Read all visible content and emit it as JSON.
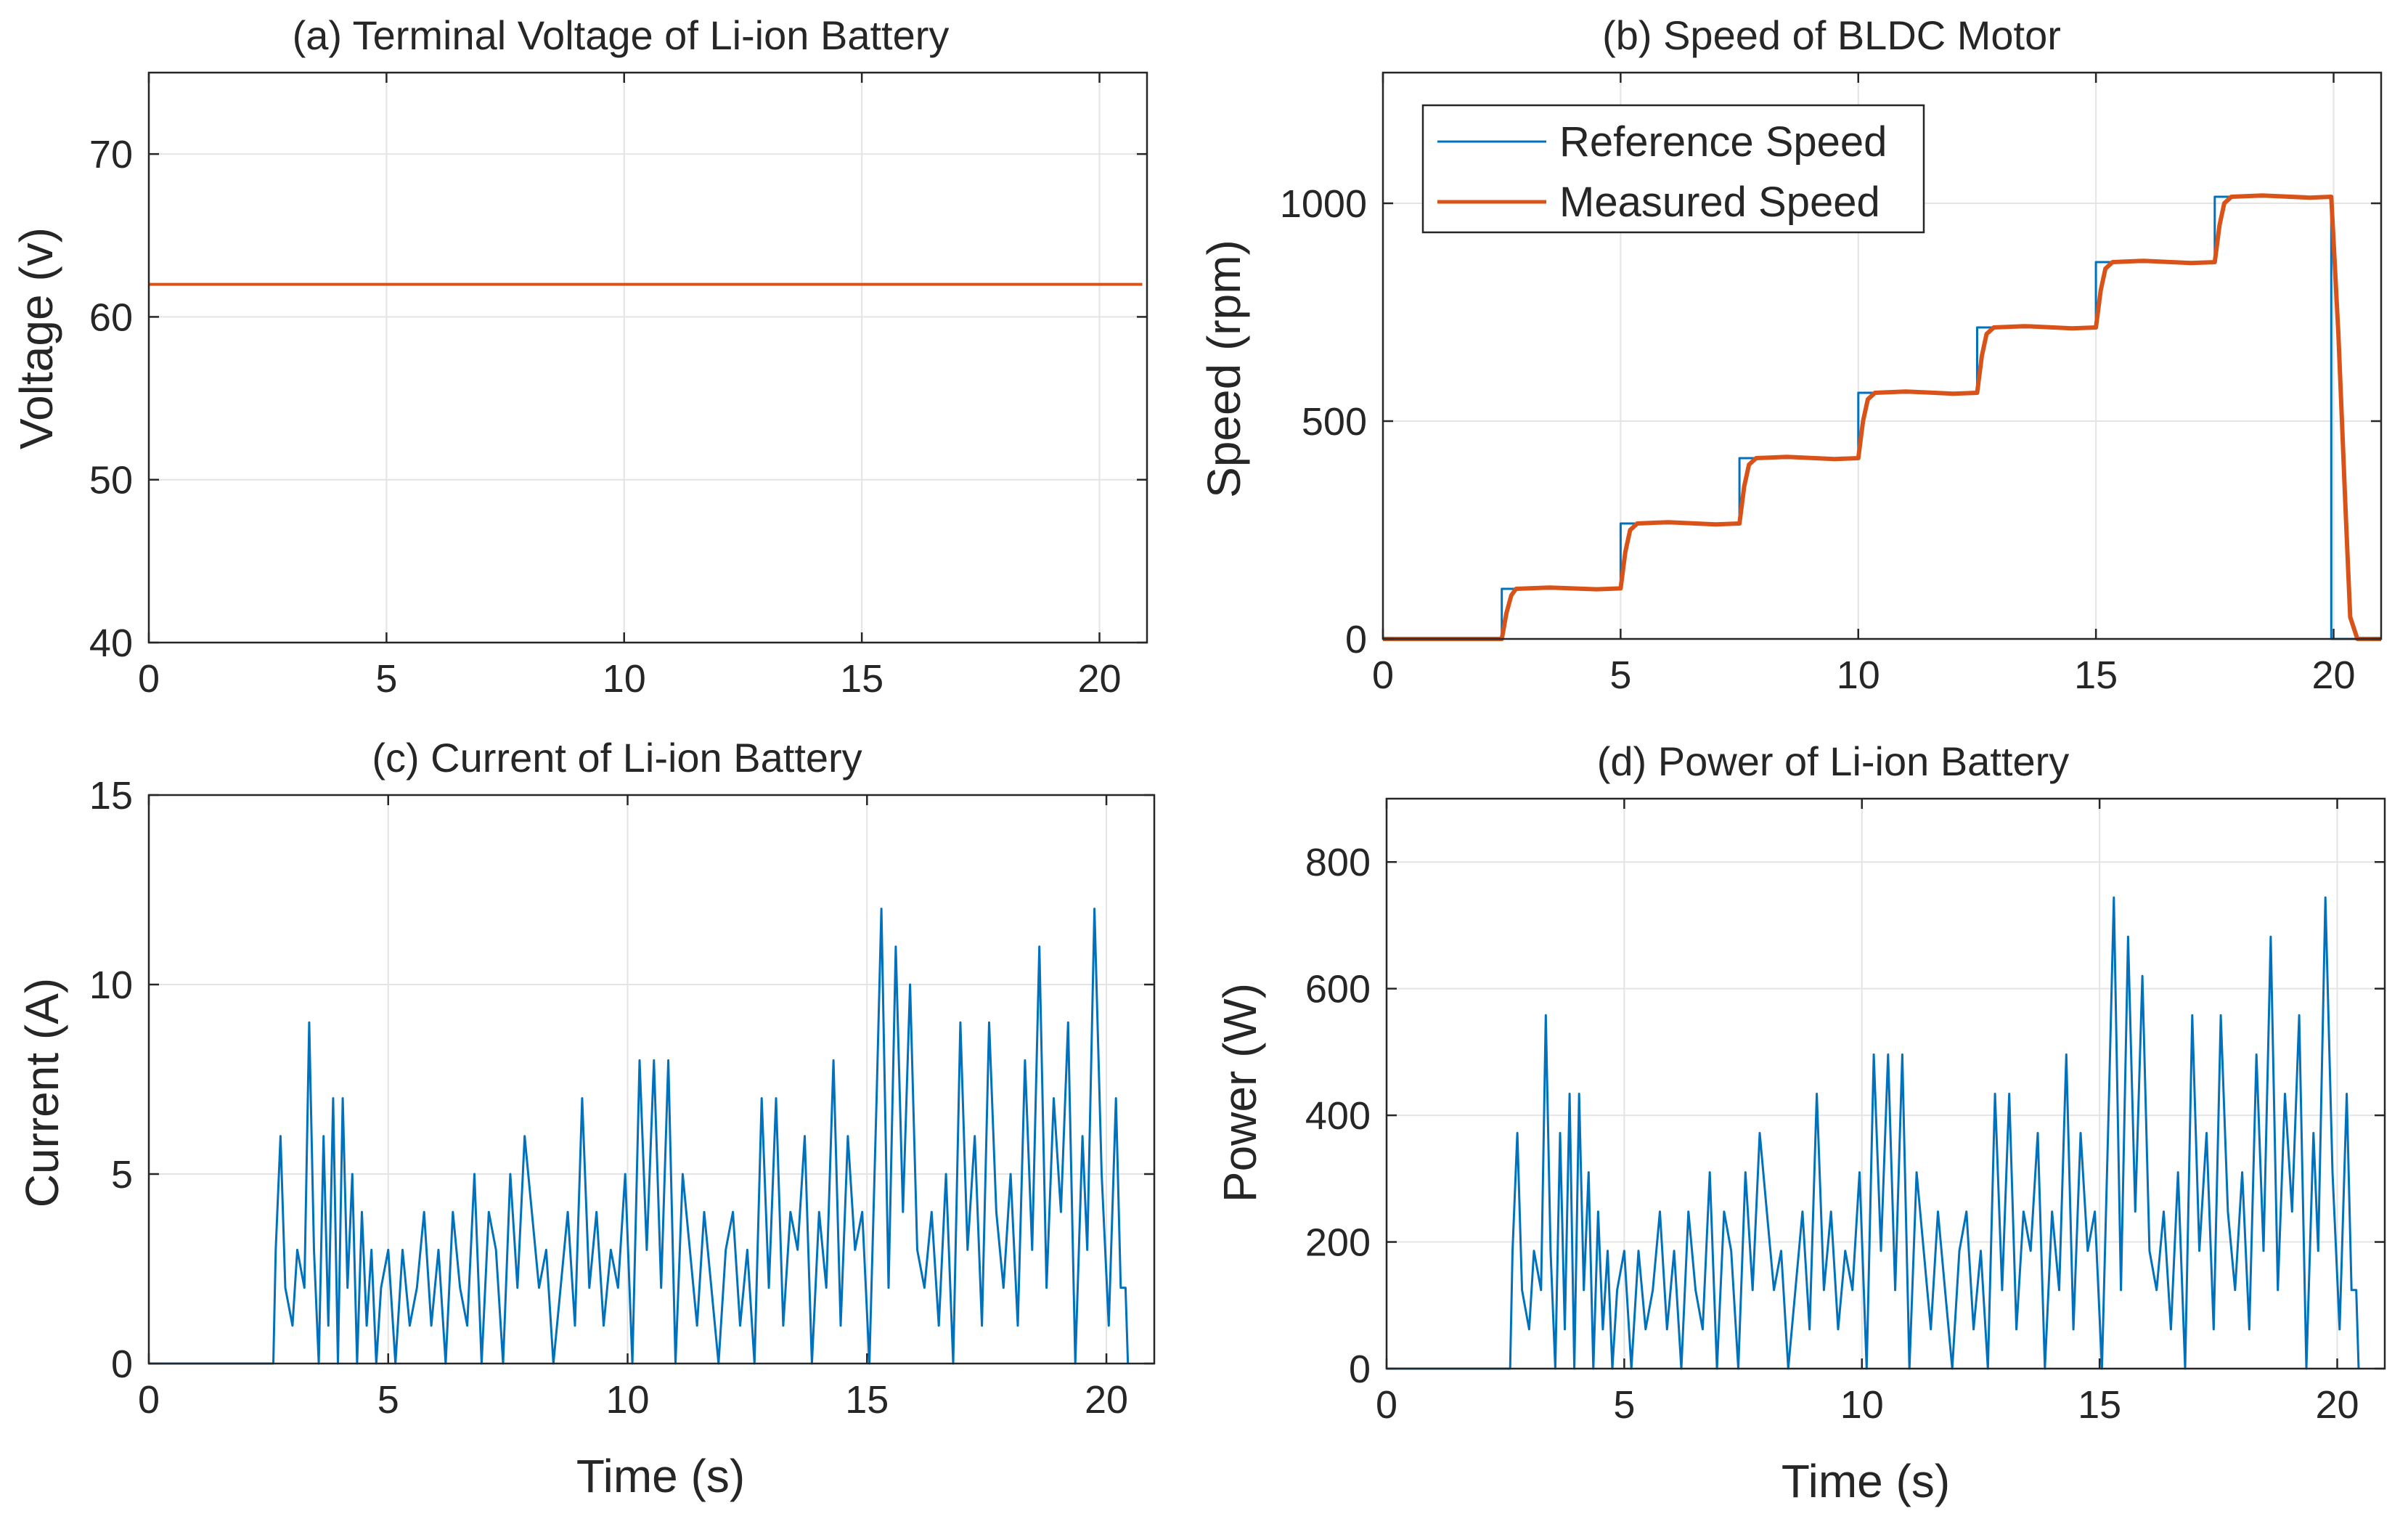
{
  "figure": {
    "colors": {
      "blue": "#0072BD",
      "orange": "#D95319",
      "grid": "#e4e4e4",
      "axis": "#262626"
    }
  },
  "chart_data": [
    {
      "id": "a",
      "type": "line",
      "title": "(a) Terminal Voltage of Li-ion Battery",
      "xlabel": "",
      "ylabel": "Voltage (v)",
      "xlim": [
        0,
        21
      ],
      "ylim": [
        40,
        75
      ],
      "xticks": [
        0,
        5,
        10,
        15,
        20
      ],
      "xtick_labels": [
        "0",
        "5",
        "10",
        "15",
        "20"
      ],
      "yticks": [
        40,
        50,
        60,
        70
      ],
      "ytick_labels": [
        "40",
        "50",
        "60",
        "70"
      ],
      "grid": true,
      "series": [
        {
          "name": "Terminal Voltage",
          "color": "#D95319",
          "x": [
            0,
            20.9
          ],
          "y": [
            62,
            62
          ]
        }
      ]
    },
    {
      "id": "b",
      "type": "line",
      "title": "(b) Speed of BLDC Motor",
      "xlabel": "",
      "ylabel": "Speed (rpm)",
      "xlim": [
        0,
        21
      ],
      "ylim": [
        0,
        1300
      ],
      "xticks": [
        0,
        5,
        10,
        15,
        20
      ],
      "xtick_labels": [
        "0",
        "5",
        "10",
        "15",
        "20"
      ],
      "yticks": [
        0,
        500,
        1000
      ],
      "ytick_labels": [
        "0",
        "500",
        "1000"
      ],
      "grid": true,
      "legend": {
        "position": "top-left",
        "entries": [
          "Reference Speed",
          "Measured Speed"
        ]
      },
      "series": [
        {
          "name": "Reference Speed",
          "color": "#0072BD",
          "x": [
            0,
            2.5,
            2.5,
            5,
            5,
            7.5,
            7.5,
            10,
            10,
            12.5,
            12.5,
            15,
            15,
            17.5,
            17.5,
            19.95,
            19.95,
            21
          ],
          "y": [
            0,
            0,
            115,
            115,
            265,
            265,
            415,
            415,
            565,
            565,
            715,
            715,
            865,
            865,
            1015,
            1015,
            0,
            0
          ]
        },
        {
          "name": "Measured Speed",
          "color": "#D95319",
          "x": [
            0,
            2.5,
            2.6,
            2.7,
            2.8,
            3.5,
            4.5,
            5,
            5.1,
            5.2,
            5.35,
            6,
            7,
            7.5,
            7.6,
            7.7,
            7.85,
            8.5,
            9.5,
            10,
            10.1,
            10.2,
            10.35,
            11,
            12,
            12.5,
            12.6,
            12.7,
            12.85,
            13.5,
            14.5,
            15,
            15.1,
            15.2,
            15.35,
            16,
            17,
            17.5,
            17.6,
            17.7,
            17.85,
            18.5,
            19.5,
            19.95,
            20.1,
            20.25,
            20.35,
            20.5,
            21
          ],
          "y": [
            0,
            0,
            60,
            100,
            115,
            118,
            114,
            116,
            200,
            250,
            265,
            268,
            263,
            265,
            350,
            400,
            415,
            418,
            413,
            415,
            500,
            550,
            565,
            568,
            563,
            565,
            650,
            700,
            715,
            718,
            713,
            715,
            800,
            850,
            865,
            868,
            863,
            865,
            950,
            1000,
            1015,
            1018,
            1013,
            1015,
            700,
            300,
            50,
            0,
            0
          ]
        }
      ]
    },
    {
      "id": "c",
      "type": "line",
      "title": "(c) Current of Li-ion Battery",
      "xlabel": "Time (s)",
      "ylabel": "Current (A)",
      "xlim": [
        0,
        21
      ],
      "ylim": [
        0,
        15
      ],
      "xticks": [
        0,
        5,
        10,
        15,
        20
      ],
      "xtick_labels": [
        "0",
        "5",
        "10",
        "15",
        "20"
      ],
      "yticks": [
        0,
        5,
        10,
        15
      ],
      "ytick_labels": [
        "0",
        "5",
        "10",
        "15"
      ],
      "grid": true,
      "series": [
        {
          "name": "Current",
          "color": "#0072BD",
          "x": [
            0,
            2.6,
            2.65,
            2.75,
            2.85,
            3.0,
            3.1,
            3.25,
            3.35,
            3.45,
            3.55,
            3.65,
            3.75,
            3.85,
            3.95,
            4.05,
            4.15,
            4.25,
            4.35,
            4.45,
            4.55,
            4.65,
            4.75,
            4.85,
            5.0,
            5.15,
            5.3,
            5.45,
            5.6,
            5.75,
            5.9,
            6.05,
            6.2,
            6.35,
            6.5,
            6.65,
            6.8,
            6.95,
            7.1,
            7.25,
            7.4,
            7.55,
            7.7,
            7.85,
            8.0,
            8.15,
            8.3,
            8.45,
            8.6,
            8.75,
            8.9,
            9.05,
            9.2,
            9.35,
            9.5,
            9.65,
            9.8,
            9.95,
            10.1,
            10.25,
            10.4,
            10.55,
            10.7,
            10.85,
            11.0,
            11.15,
            11.3,
            11.45,
            11.6,
            11.75,
            11.9,
            12.05,
            12.2,
            12.35,
            12.5,
            12.65,
            12.8,
            12.95,
            13.1,
            13.25,
            13.4,
            13.55,
            13.7,
            13.85,
            14.0,
            14.15,
            14.3,
            14.45,
            14.6,
            14.75,
            14.9,
            15.05,
            15.2,
            15.3,
            15.45,
            15.6,
            15.75,
            15.9,
            16.05,
            16.2,
            16.35,
            16.5,
            16.65,
            16.8,
            16.95,
            17.1,
            17.25,
            17.4,
            17.55,
            17.7,
            17.85,
            18.0,
            18.15,
            18.3,
            18.45,
            18.6,
            18.75,
            18.9,
            19.05,
            19.2,
            19.35,
            19.5,
            19.6,
            19.75,
            19.9,
            20.05,
            20.2,
            20.3,
            20.4,
            20.45
          ],
          "y": [
            0,
            0,
            3,
            6,
            2,
            1,
            3,
            2,
            9,
            3,
            0,
            6,
            1,
            7,
            0,
            7,
            2,
            5,
            0,
            4,
            1,
            3,
            0,
            2,
            3,
            0,
            3,
            1,
            2,
            4,
            1,
            3,
            0,
            4,
            2,
            1,
            5,
            0,
            4,
            3,
            0,
            5,
            2,
            6,
            4,
            2,
            3,
            0,
            2,
            4,
            1,
            7,
            2,
            4,
            1,
            3,
            2,
            5,
            0,
            8,
            3,
            8,
            2,
            8,
            0,
            5,
            3,
            1,
            4,
            2,
            0,
            3,
            4,
            1,
            3,
            0,
            7,
            2,
            7,
            1,
            4,
            3,
            6,
            0,
            4,
            2,
            8,
            1,
            6,
            3,
            4,
            0,
            7,
            12,
            2,
            11,
            4,
            10,
            3,
            2,
            4,
            1,
            5,
            0,
            9,
            3,
            6,
            1,
            9,
            4,
            2,
            5,
            1,
            8,
            3,
            11,
            2,
            7,
            4,
            9,
            0,
            6,
            3,
            12,
            5,
            1,
            7,
            2,
            2,
            0
          ]
        }
      ]
    },
    {
      "id": "d",
      "type": "line",
      "title": "(d) Power of Li-ion Battery",
      "xlabel": "Time (s)",
      "ylabel": "Power (W)",
      "xlim": [
        0,
        21
      ],
      "ylim": [
        0,
        900
      ],
      "xticks": [
        0,
        5,
        10,
        15,
        20
      ],
      "xtick_labels": [
        "0",
        "5",
        "10",
        "15",
        "20"
      ],
      "yticks": [
        0,
        200,
        400,
        600,
        800
      ],
      "ytick_labels": [
        "0",
        "200",
        "400",
        "600",
        "800"
      ],
      "grid": true,
      "series": [
        {
          "name": "Power",
          "color": "#0072BD",
          "x": [
            0,
            2.6,
            2.65,
            2.75,
            2.85,
            3.0,
            3.1,
            3.25,
            3.35,
            3.45,
            3.55,
            3.65,
            3.75,
            3.85,
            3.95,
            4.05,
            4.15,
            4.25,
            4.35,
            4.45,
            4.55,
            4.65,
            4.75,
            4.85,
            5.0,
            5.15,
            5.3,
            5.45,
            5.6,
            5.75,
            5.9,
            6.05,
            6.2,
            6.35,
            6.5,
            6.65,
            6.8,
            6.95,
            7.1,
            7.25,
            7.4,
            7.55,
            7.7,
            7.85,
            8.0,
            8.15,
            8.3,
            8.45,
            8.6,
            8.75,
            8.9,
            9.05,
            9.2,
            9.35,
            9.5,
            9.65,
            9.8,
            9.95,
            10.1,
            10.25,
            10.4,
            10.55,
            10.7,
            10.85,
            11.0,
            11.15,
            11.3,
            11.45,
            11.6,
            11.75,
            11.9,
            12.05,
            12.2,
            12.35,
            12.5,
            12.65,
            12.8,
            12.95,
            13.1,
            13.25,
            13.4,
            13.55,
            13.7,
            13.85,
            14.0,
            14.15,
            14.3,
            14.45,
            14.6,
            14.75,
            14.9,
            15.05,
            15.2,
            15.3,
            15.45,
            15.6,
            15.75,
            15.9,
            16.05,
            16.2,
            16.35,
            16.5,
            16.65,
            16.8,
            16.95,
            17.1,
            17.25,
            17.4,
            17.55,
            17.7,
            17.85,
            18.0,
            18.15,
            18.3,
            18.45,
            18.6,
            18.75,
            18.9,
            19.05,
            19.2,
            19.35,
            19.5,
            19.6,
            19.75,
            19.9,
            20.05,
            20.2,
            20.3,
            20.4,
            20.45
          ],
          "y": [
            0,
            0,
            186,
            372,
            124,
            62,
            186,
            124,
            558,
            186,
            0,
            372,
            62,
            434,
            0,
            434,
            124,
            310,
            0,
            248,
            62,
            186,
            0,
            124,
            186,
            0,
            186,
            62,
            124,
            248,
            62,
            186,
            0,
            248,
            124,
            62,
            310,
            0,
            248,
            186,
            0,
            310,
            124,
            372,
            248,
            124,
            186,
            0,
            124,
            248,
            62,
            434,
            124,
            248,
            62,
            186,
            124,
            310,
            0,
            496,
            186,
            496,
            124,
            496,
            0,
            310,
            186,
            62,
            248,
            124,
            0,
            186,
            248,
            62,
            186,
            0,
            434,
            124,
            434,
            62,
            248,
            186,
            372,
            0,
            248,
            124,
            496,
            62,
            372,
            186,
            248,
            0,
            434,
            744,
            124,
            682,
            248,
            620,
            186,
            124,
            248,
            62,
            310,
            0,
            558,
            186,
            372,
            62,
            558,
            248,
            124,
            310,
            62,
            496,
            186,
            682,
            124,
            434,
            248,
            558,
            0,
            372,
            186,
            744,
            310,
            62,
            434,
            124,
            124,
            0
          ]
        }
      ]
    }
  ]
}
